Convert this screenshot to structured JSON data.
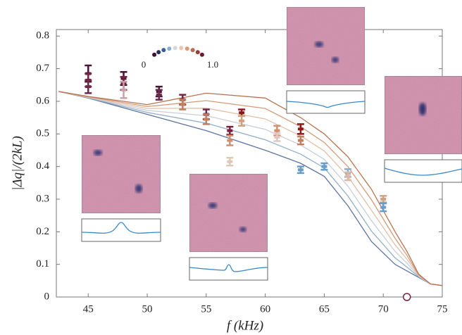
{
  "chart_data": {
    "type": "line",
    "x_label": "f  (kHz)",
    "y_label": "|Δq|/(2kL)",
    "xlim": [
      42.3,
      75
    ],
    "ylim": [
      0,
      0.82
    ],
    "xticks": [
      45,
      50,
      55,
      60,
      65,
      70,
      75
    ],
    "yticks": [
      0,
      0.1,
      0.2,
      0.3,
      0.4,
      0.5,
      0.6,
      0.7,
      0.8
    ],
    "x": [
      42.5,
      45,
      50,
      55,
      60,
      63,
      65,
      67,
      69,
      71,
      72,
      73,
      74,
      75
    ],
    "series": [
      {
        "color": "#5b74a0",
        "values": [
          0.63,
          0.61,
          0.56,
          0.51,
          0.45,
          0.41,
          0.37,
          0.28,
          0.17,
          0.1,
          0.08,
          0.06,
          0.04,
          0.035
        ]
      },
      {
        "color": "#8fafcb",
        "values": [
          0.63,
          0.611,
          0.566,
          0.533,
          0.482,
          0.438,
          0.396,
          0.31,
          0.202,
          0.12,
          0.092,
          0.062,
          0.04,
          0.035
        ]
      },
      {
        "color": "#c9cfd6",
        "values": [
          0.63,
          0.612,
          0.572,
          0.556,
          0.514,
          0.466,
          0.422,
          0.34,
          0.234,
          0.14,
          0.104,
          0.064,
          0.04,
          0.035
        ]
      },
      {
        "color": "#e2bfa8",
        "values": [
          0.63,
          0.613,
          0.578,
          0.579,
          0.546,
          0.494,
          0.448,
          0.37,
          0.266,
          0.16,
          0.116,
          0.066,
          0.04,
          0.035
        ]
      },
      {
        "color": "#d49a78",
        "values": [
          0.63,
          0.614,
          0.584,
          0.602,
          0.578,
          0.522,
          0.474,
          0.4,
          0.298,
          0.18,
          0.128,
          0.068,
          0.04,
          0.035
        ]
      },
      {
        "color": "#b8744f",
        "values": [
          0.63,
          0.615,
          0.59,
          0.625,
          0.61,
          0.55,
          0.5,
          0.43,
          0.33,
          0.2,
          0.14,
          0.07,
          0.04,
          0.035
        ]
      }
    ],
    "errorbars": {
      "x": [
        45,
        45,
        45,
        48,
        48,
        48,
        51,
        51,
        53,
        53,
        55,
        55,
        57,
        57,
        57,
        58,
        58,
        61,
        61,
        63,
        63,
        63,
        65,
        67,
        67,
        70,
        70
      ],
      "values": [
        0.685,
        0.665,
        0.645,
        0.67,
        0.655,
        0.635,
        0.63,
        0.62,
        0.605,
        0.59,
        0.56,
        0.545,
        0.51,
        0.48,
        0.415,
        0.565,
        0.54,
        0.51,
        0.49,
        0.515,
        0.48,
        0.39,
        0.4,
        0.38,
        0.37,
        0.3,
        0.275
      ],
      "errors": [
        0.025,
        0.02,
        0.02,
        0.02,
        0.02,
        0.025,
        0.015,
        0.015,
        0.015,
        0.015,
        0.015,
        0.015,
        0.012,
        0.015,
        0.012,
        0.01,
        0.015,
        0.015,
        0.012,
        0.015,
        0.012,
        0.01,
        0.01,
        0.012,
        0.012,
        0.01,
        0.012
      ],
      "colors": [
        "#4a1438",
        "#7a2040",
        "#6b2a4a",
        "#4a1438",
        "#7a2040",
        "#c9a0a8",
        "#4a1438",
        "#6b2a4a",
        "#7a2040",
        "#c08060",
        "#6b2a4a",
        "#c08060",
        "#7a2040",
        "#d09070",
        "#e0c8b8",
        "#8b1a1a",
        "#d0a080",
        "#d09070",
        "#e0c8c0",
        "#8b1a1a",
        "#c08060",
        "#6a9cc8",
        "#6a9cc8",
        "#8ab0cc",
        "#d8b8a8",
        "#d0a080",
        "#6a9cc8"
      ]
    },
    "marker": {
      "x": 72,
      "y": 0,
      "color": "#7a2040"
    },
    "colorbar": {
      "colors": [
        "#3d0f33",
        "#2a2f5e",
        "#3a5f94",
        "#86b0d0",
        "#d8d8d8",
        "#e8c8b0",
        "#d89a78",
        "#b86a50",
        "#9a3a3a",
        "#6a1830"
      ],
      "ticks": [
        0,
        {
          "value": 1,
          "label": "1.0"
        }
      ]
    }
  }
}
